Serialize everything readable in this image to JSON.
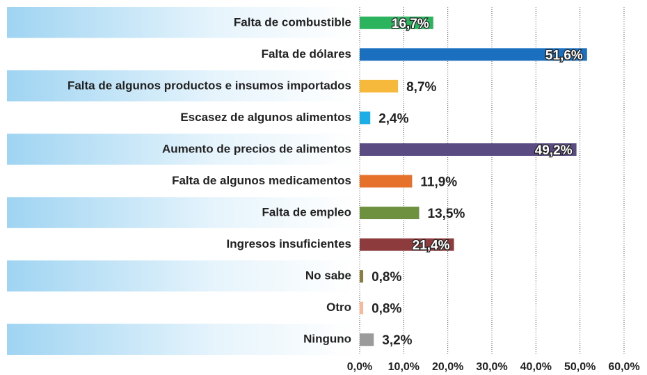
{
  "chart_data": {
    "type": "bar",
    "orientation": "horizontal",
    "categories": [
      "Falta de combustible",
      "Falta de dólares",
      "Falta de algunos productos e insumos importados",
      "Escasez de algunos alimentos",
      "Aumento de precios de alimentos",
      "Falta de algunos medicamentos",
      "Falta de empleo",
      "Ingresos insuficientes",
      "No sabe",
      "Otro",
      "Ninguno"
    ],
    "values": [
      16.7,
      51.6,
      8.7,
      2.4,
      49.2,
      11.9,
      13.5,
      21.4,
      0.8,
      0.8,
      3.2
    ],
    "value_labels": [
      "16,7%",
      "51,6%",
      "8,7%",
      "2,4%",
      "49,2%",
      "11,9%",
      "13,5%",
      "21,4%",
      "0,8%",
      "0,8%",
      "3,2%"
    ],
    "colors": [
      "#2bb35e",
      "#1a6fbf",
      "#f6b93b",
      "#1badE6",
      "#5a4b82",
      "#e5712b",
      "#6e913f",
      "#8d3b3c",
      "#8a7c45",
      "#f6b99b",
      "#9b9b9b"
    ],
    "xlim": [
      0,
      60
    ],
    "xticks": [
      {
        "value": 0,
        "label": "0,0%"
      },
      {
        "value": 10,
        "label": "10,0%"
      },
      {
        "value": 20,
        "label": "20,0%"
      },
      {
        "value": 30,
        "label": "30,0%"
      },
      {
        "value": 40,
        "label": "40,0%"
      },
      {
        "value": 50,
        "label": "50,0%"
      },
      {
        "value": 60,
        "label": "60,0%"
      }
    ],
    "grid": true
  }
}
